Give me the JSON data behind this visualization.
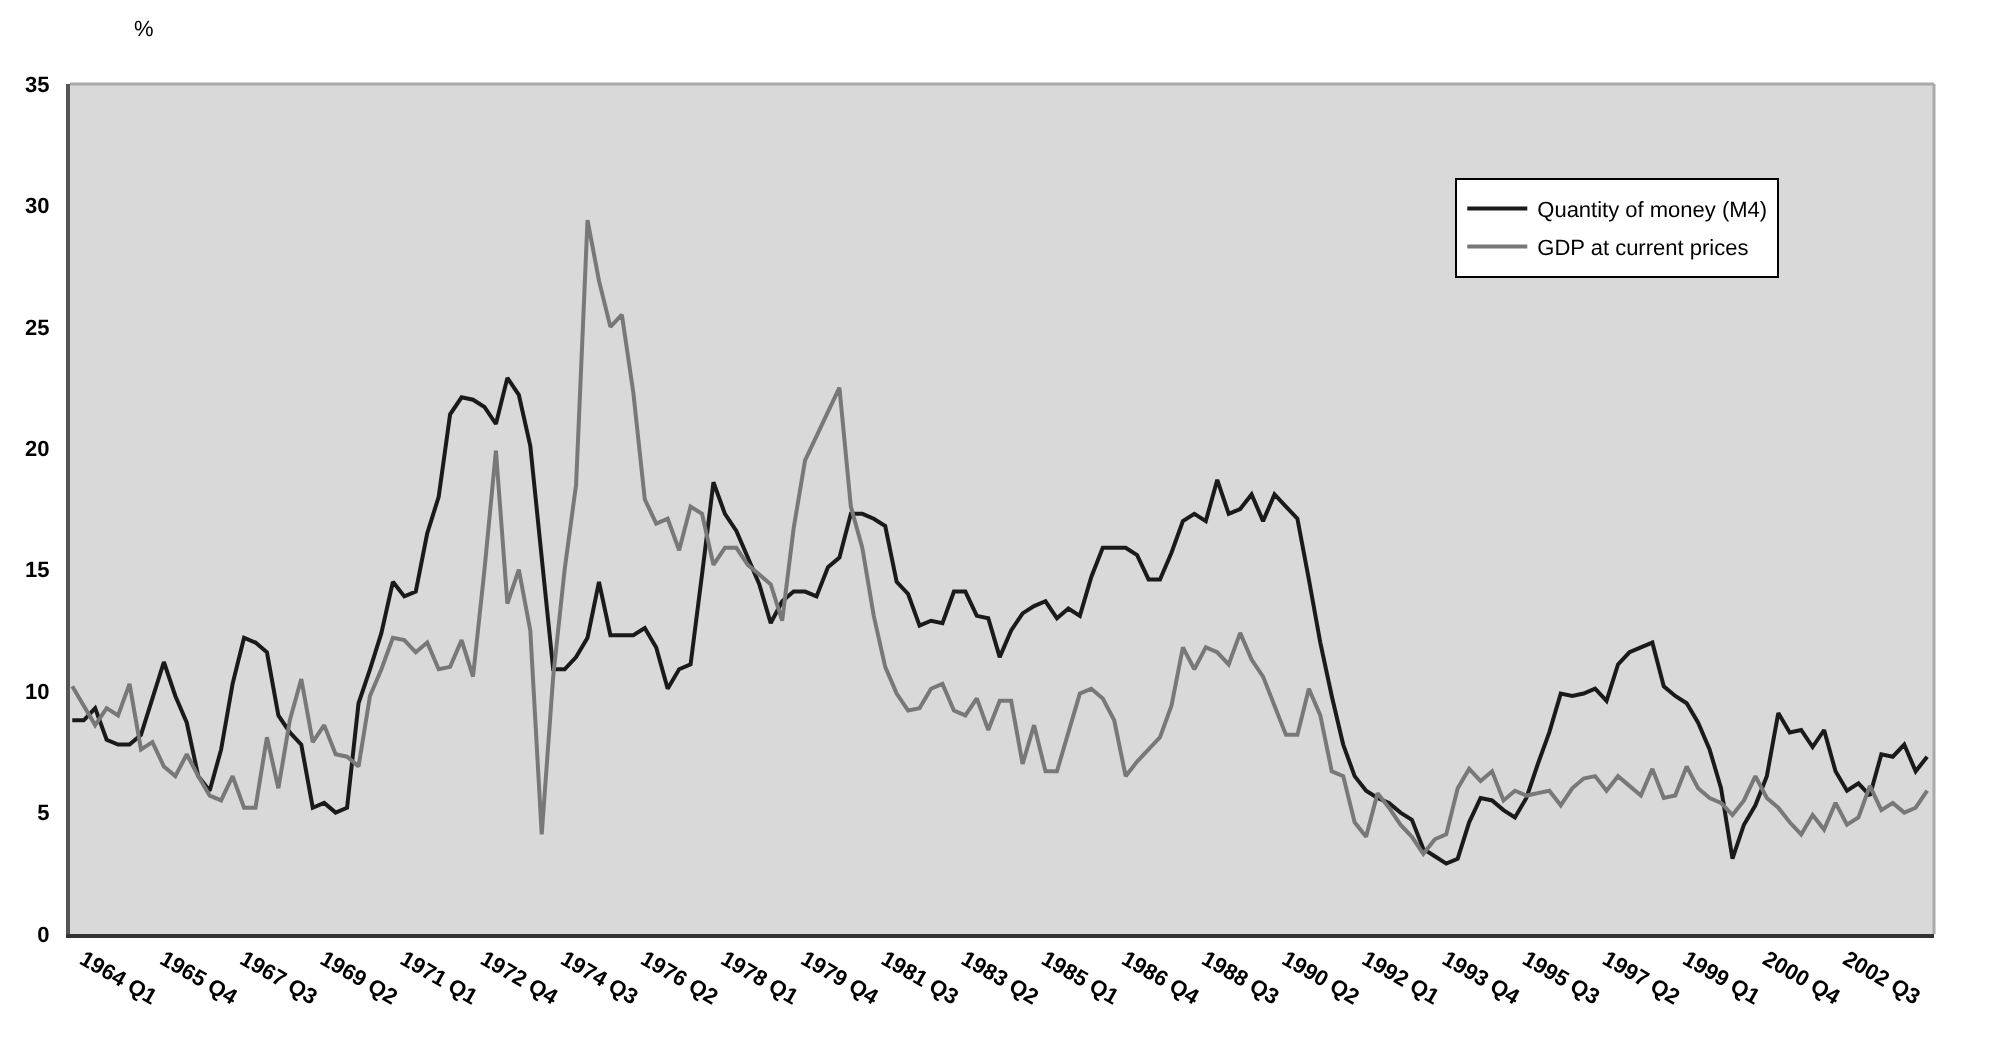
{
  "chart_data": {
    "type": "line",
    "ylabel": "%",
    "categories": [
      null,
      "1964 Q1",
      null,
      null,
      null,
      null,
      null,
      null,
      "1965 Q4",
      null,
      null,
      null,
      null,
      null,
      null,
      "1967 Q3",
      null,
      null,
      null,
      null,
      null,
      null,
      "1969 Q2",
      null,
      null,
      null,
      null,
      null,
      null,
      "1971 Q1",
      null,
      null,
      null,
      null,
      null,
      null,
      "1972 Q4",
      null,
      null,
      null,
      null,
      null,
      null,
      "1974 Q3",
      null,
      null,
      null,
      null,
      null,
      null,
      "1976 Q2",
      null,
      null,
      null,
      null,
      null,
      null,
      "1978 Q1",
      null,
      null,
      null,
      null,
      null,
      null,
      "1979 Q4",
      null,
      null,
      null,
      null,
      null,
      null,
      "1981 Q3",
      null,
      null,
      null,
      null,
      null,
      null,
      "1983 Q2",
      null,
      null,
      null,
      null,
      null,
      null,
      "1985 Q1",
      null,
      null,
      null,
      null,
      null,
      null,
      "1986 Q4",
      null,
      null,
      null,
      null,
      null,
      null,
      "1988 Q3",
      null,
      null,
      null,
      null,
      null,
      null,
      "1990 Q2",
      null,
      null,
      null,
      null,
      null,
      null,
      "1992 Q1",
      null,
      null,
      null,
      null,
      null,
      null,
      "1993 Q4",
      null,
      null,
      null,
      null,
      null,
      null,
      "1995 Q3",
      null,
      null,
      null,
      null,
      null,
      null,
      "1997 Q2",
      null,
      null,
      null,
      null,
      null,
      null,
      "1999 Q1",
      null,
      null,
      null,
      null,
      null,
      null,
      "2000 Q4",
      null,
      null,
      null,
      null,
      null,
      null,
      "2002 Q3",
      null,
      null,
      null,
      null,
      null,
      null,
      null
    ],
    "ylim": [
      0,
      35
    ],
    "yticks": [
      0,
      5,
      10,
      15,
      20,
      25,
      30,
      35
    ],
    "grid": false,
    "legend": "top right",
    "marker": "none",
    "line_style": "solid",
    "series": [
      {
        "name": "Quantity of money (M4)",
        "color": "#1a1a1a",
        "values": [
          8.8,
          8.8,
          9.3,
          8.0,
          7.8,
          7.8,
          8.2,
          9.7,
          11.2,
          9.8,
          8.7,
          6.5,
          5.9,
          7.6,
          10.3,
          12.2,
          12.0,
          11.6,
          9.0,
          8.3,
          7.8,
          5.2,
          5.4,
          5.0,
          5.2,
          9.5,
          10.9,
          12.4,
          14.5,
          13.9,
          14.1,
          16.5,
          18.0,
          21.4,
          22.1,
          22.0,
          21.7,
          21.0,
          22.9,
          22.2,
          20.1,
          15.5,
          10.9,
          10.9,
          11.4,
          12.2,
          14.5,
          12.3,
          12.3,
          12.3,
          12.6,
          11.8,
          10.1,
          10.9,
          11.1,
          14.8,
          18.6,
          17.3,
          16.6,
          15.5,
          14.4,
          12.8,
          13.7,
          14.1,
          14.1,
          13.9,
          15.1,
          15.5,
          17.3,
          17.3,
          17.1,
          16.8,
          14.5,
          14.0,
          12.7,
          12.9,
          12.8,
          14.1,
          14.1,
          13.1,
          13.0,
          11.4,
          12.5,
          13.2,
          13.5,
          13.7,
          13.0,
          13.4,
          13.1,
          14.7,
          15.9,
          15.9,
          15.9,
          15.6,
          14.6,
          14.6,
          15.7,
          17.0,
          17.3,
          17.0,
          18.7,
          17.3,
          17.5,
          18.1,
          17.0,
          18.1,
          17.6,
          17.1,
          14.6,
          12.0,
          9.8,
          7.8,
          6.5,
          5.9,
          5.6,
          5.4,
          5.0,
          4.7,
          3.5,
          3.2,
          2.9,
          3.1,
          4.6,
          5.6,
          5.5,
          5.1,
          4.8,
          5.6,
          7.0,
          8.3,
          9.9,
          9.8,
          9.9,
          10.1,
          9.6,
          11.1,
          11.6,
          11.8,
          12.0,
          10.2,
          9.8,
          9.5,
          8.7,
          7.6,
          6.0,
          3.1,
          4.5,
          5.3,
          6.5,
          9.1,
          8.3,
          8.4,
          7.7,
          8.4,
          6.7,
          5.9,
          6.2,
          5.7,
          7.4,
          7.3,
          7.8,
          6.7,
          7.3
        ]
      },
      {
        "name": "GDP at current prices",
        "color": "#787878",
        "values": [
          10.2,
          9.4,
          8.6,
          9.3,
          9.0,
          10.3,
          7.6,
          7.9,
          6.9,
          6.5,
          7.4,
          6.5,
          5.7,
          5.5,
          6.5,
          5.2,
          5.2,
          8.1,
          6.0,
          8.8,
          10.5,
          7.9,
          8.6,
          7.4,
          7.3,
          6.9,
          9.8,
          10.9,
          12.2,
          12.1,
          11.6,
          12.0,
          10.9,
          11.0,
          12.1,
          10.6,
          15.0,
          19.9,
          13.6,
          15.0,
          12.5,
          4.1,
          10.6,
          15.0,
          18.5,
          29.4,
          26.9,
          25.0,
          25.5,
          22.3,
          17.9,
          16.9,
          17.1,
          15.8,
          17.6,
          17.3,
          15.2,
          15.9,
          15.9,
          15.2,
          14.8,
          14.4,
          12.9,
          16.7,
          19.5,
          20.5,
          21.5,
          22.5,
          17.6,
          15.9,
          13.1,
          11.0,
          9.9,
          9.2,
          9.3,
          10.1,
          10.3,
          9.2,
          9.0,
          9.7,
          8.4,
          9.6,
          9.6,
          7.0,
          8.6,
          6.7,
          6.7,
          8.3,
          9.9,
          10.1,
          9.7,
          8.8,
          6.5,
          7.1,
          7.6,
          8.1,
          9.4,
          11.8,
          10.9,
          11.8,
          11.6,
          11.1,
          12.4,
          11.3,
          10.6,
          9.4,
          8.2,
          8.2,
          10.1,
          9.0,
          6.7,
          6.5,
          4.6,
          4.0,
          5.8,
          5.2,
          4.5,
          4.0,
          3.3,
          3.9,
          4.1,
          6.0,
          6.8,
          6.3,
          6.7,
          5.5,
          5.9,
          5.7,
          5.8,
          5.9,
          5.3,
          6.0,
          6.4,
          6.5,
          5.9,
          6.5,
          6.1,
          5.7,
          6.8,
          5.6,
          5.7,
          6.9,
          6.0,
          5.6,
          5.4,
          4.9,
          5.5,
          6.5,
          5.6,
          5.2,
          4.6,
          4.1,
          4.9,
          4.3,
          5.4,
          4.5,
          4.8,
          6.1,
          5.1,
          5.4,
          5.0,
          5.2,
          5.9
        ]
      }
    ]
  }
}
